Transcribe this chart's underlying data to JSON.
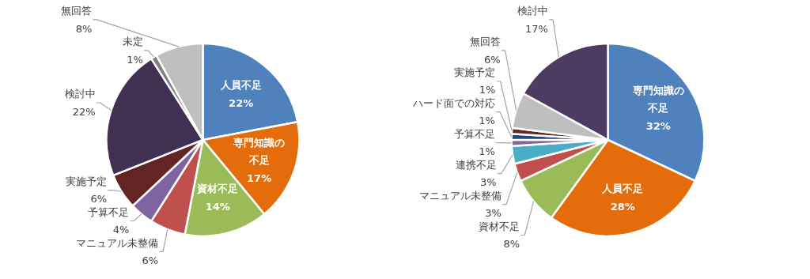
{
  "chart_data": [
    {
      "type": "pie",
      "categories": [
        "人員不足",
        "専門知識の不足",
        "資材不足",
        "マニュアル未整備",
        "予算不足",
        "実施予定",
        "検討中",
        "未定",
        "無回答"
      ],
      "values": [
        22,
        17,
        14,
        6,
        4,
        6,
        22,
        1,
        8
      ],
      "value_labels": [
        "22%",
        "17%",
        "14%",
        "6%",
        "4%",
        "6%",
        "22%",
        "1%",
        "8%"
      ],
      "colors": [
        "#4f81bd",
        "#e46c0a",
        "#9bbb59",
        "#c0504d",
        "#8064a2",
        "#632523",
        "#403152",
        "#7f7f7f",
        "#bfbfbf"
      ]
    },
    {
      "type": "pie",
      "categories": [
        "専門知識の不足",
        "人員不足",
        "資材不足",
        "マニュアル未整備",
        "連携不足",
        "予算不足",
        "ハード面での対応",
        "実施予定",
        "無回答",
        "検討中"
      ],
      "values": [
        32,
        28,
        8,
        3,
        3,
        1,
        1,
        1,
        6,
        17
      ],
      "value_labels": [
        "32%",
        "28%",
        "8%",
        "3%",
        "3%",
        "1%",
        "1%",
        "1%",
        "6%",
        "17%"
      ],
      "colors": [
        "#4f81bd",
        "#e46c0a",
        "#9bbb59",
        "#c0504d",
        "#4bacc6",
        "#8064a2",
        "#1f497d",
        "#632523",
        "#bfbfbf",
        "#4e3b62"
      ]
    }
  ]
}
